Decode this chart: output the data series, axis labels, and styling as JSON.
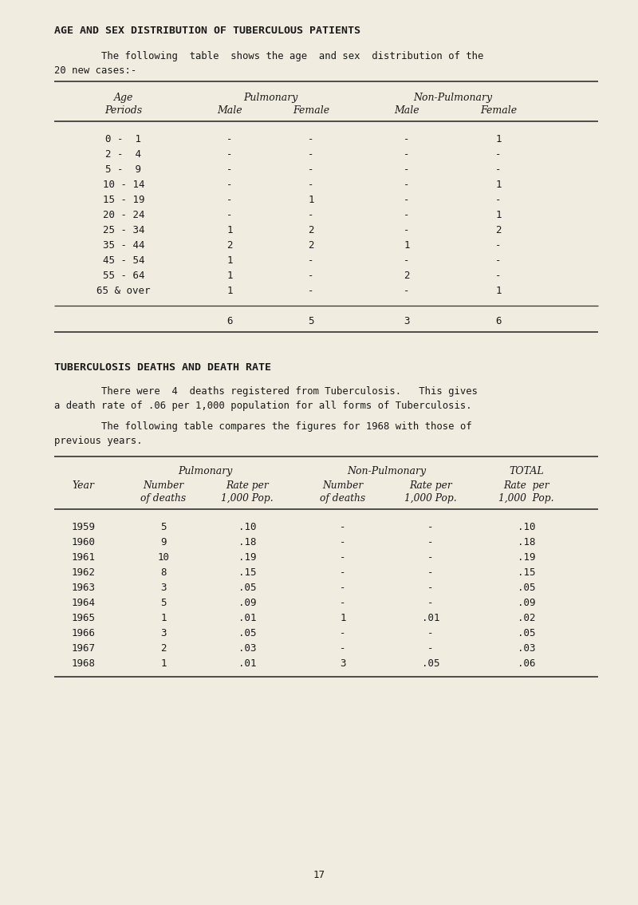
{
  "bg_color": "#f0ece0",
  "title1": "AGE AND SEX DISTRIBUTION OF TUBERCULOUS PATIENTS",
  "intro_line1": "        The following  table  shows the age  and sex  distribution of the",
  "intro_line2": "20 new cases:-",
  "table1_rows": [
    [
      "0 -  1",
      "-",
      "-",
      "-",
      "1"
    ],
    [
      "2 -  4",
      "-",
      "-",
      "-",
      "-"
    ],
    [
      "5 -  9",
      "-",
      "-",
      "-",
      "-"
    ],
    [
      "10 - 14",
      "-",
      "-",
      "-",
      "1"
    ],
    [
      "15 - 19",
      "-",
      "1",
      "-",
      "-"
    ],
    [
      "20 - 24",
      "-",
      "-",
      "-",
      "1"
    ],
    [
      "25 - 34",
      "1",
      "2",
      "-",
      "2"
    ],
    [
      "35 - 44",
      "2",
      "2",
      "1",
      "-"
    ],
    [
      "45 - 54",
      "1",
      "-",
      "-",
      "-"
    ],
    [
      "55 - 64",
      "1",
      "-",
      "2",
      "-"
    ],
    [
      "65 & over",
      "1",
      "-",
      "-",
      "1"
    ]
  ],
  "table1_totals": [
    "6",
    "5",
    "3",
    "6"
  ],
  "section2_title": "TUBERCULOSIS DEATHS AND DEATH RATE",
  "section2_para1_line1": "        There were  4  deaths registered from Tuberculosis.   This gives",
  "section2_para1_line2": "a death rate of .06 per 1,000 population for all forms of Tuberculosis.",
  "section2_para2_line1": "        The following table compares the figures for 1968 with those of",
  "section2_para2_line2": "previous years.",
  "table2_rows": [
    [
      "1959",
      "5",
      ".10",
      "-",
      "-",
      ".10"
    ],
    [
      "1960",
      "9",
      ".18",
      "-",
      "-",
      ".18"
    ],
    [
      "1961",
      "10",
      ".19",
      "-",
      "-",
      ".19"
    ],
    [
      "1962",
      "8",
      ".15",
      "-",
      "-",
      ".15"
    ],
    [
      "1963",
      "3",
      ".05",
      "-",
      "-",
      ".05"
    ],
    [
      "1964",
      "5",
      ".09",
      "-",
      "-",
      ".09"
    ],
    [
      "1965",
      "1",
      ".01",
      "1",
      ".01",
      ".02"
    ],
    [
      "1966",
      "3",
      ".05",
      "-",
      "-",
      ".05"
    ],
    [
      "1967",
      "2",
      ".03",
      "-",
      "-",
      ".03"
    ],
    [
      "1968",
      "1",
      ".01",
      "3",
      ".05",
      ".06"
    ]
  ],
  "page_number": "17"
}
